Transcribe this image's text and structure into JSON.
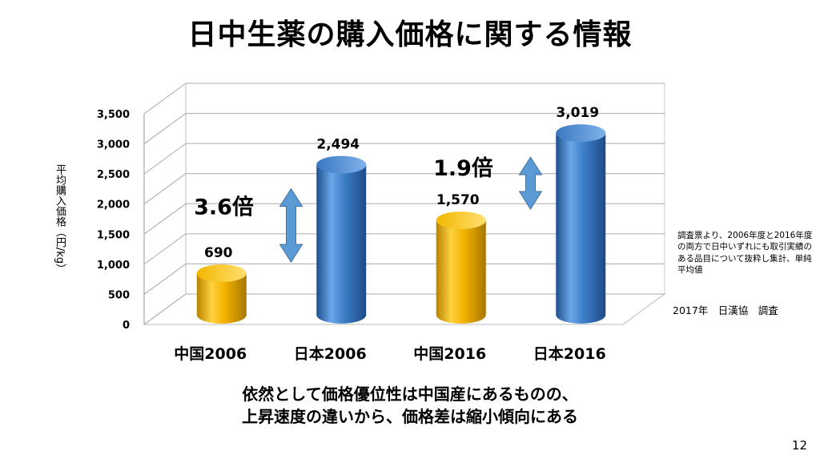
{
  "title": "日中生薬の購入価格に関する情報",
  "chart_data": {
    "type": "bar",
    "style": "3d-cylinder",
    "categories": [
      "中国2006",
      "日本2006",
      "中国2016",
      "日本2016"
    ],
    "values": [
      690,
      2494,
      1570,
      3019
    ],
    "value_labels": [
      "690",
      "2,494",
      "1,570",
      "3,019"
    ],
    "bar_colors": [
      "#f4b400",
      "#3d7fc9",
      "#f4b400",
      "#3d7fc9"
    ],
    "ylabel": "平均購入価格（円/kg）",
    "ylim": [
      0,
      3500
    ],
    "y_ticks": [
      0,
      500,
      1000,
      1500,
      2000,
      2500,
      3000,
      3500
    ],
    "y_tick_labels": [
      "0",
      "500",
      "1,000",
      "1,500",
      "2,000",
      "2,500",
      "3,000",
      "3,500"
    ],
    "grid": true,
    "annotations": [
      {
        "text": "3.6倍",
        "between": [
          "中国2006",
          "日本2006"
        ]
      },
      {
        "text": "1.9倍",
        "between": [
          "中国2016",
          "日本2016"
        ]
      }
    ],
    "arrow_color": "#5b9bd5"
  },
  "note": "調査票より、2006年度と2016年度の両方で日中いずれにも取引実績のある品目について抜粋し集計、単純平均値",
  "source": "2017年　日漢協　調査",
  "conclusion_lines": [
    "依然として価格優位性は中国産にあるものの、",
    "上昇速度の違いから、価格差は縮小傾向にある"
  ],
  "page_number": "12"
}
